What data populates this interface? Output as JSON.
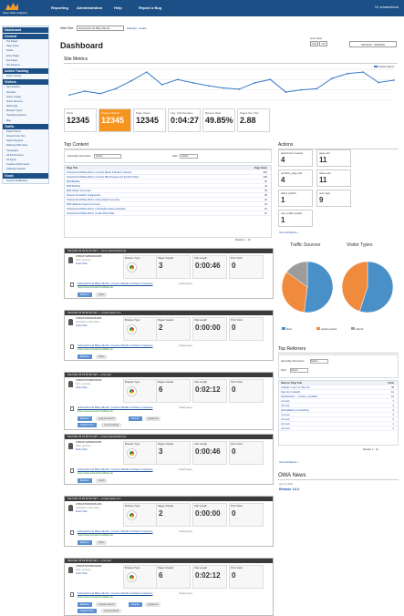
{
  "app": {
    "logo_text": "Open Web Analytics",
    "nav": [
      "Reporting",
      "Administration",
      "Help",
      "Report a Bug"
    ],
    "greeting": "Hi, schwarzhund"
  },
  "sidebar": [
    {
      "group": "Dashboard",
      "items": []
    },
    {
      "group": "Content",
      "items": [
        "Top Pages",
        "Page Types",
        "Feeds",
        "Entry Pages",
        "Exit Pages",
        "Domstreams"
      ]
    },
    {
      "group": "Action Tracking",
      "items": [
        "Action Groups"
      ]
    },
    {
      "group": "Visitors",
      "items": [
        "Geo-location",
        "Domains",
        "Visitor Loyalty",
        "Visitor Recency",
        "Visitor Age",
        "Browser Types",
        "Operating Systems",
        "Map"
      ]
    },
    {
      "group": "Traffic",
      "items": [
        "Search Terms",
        "Inbound Link Text",
        "Search Engines",
        "Referring Web Sites",
        "Campaigns",
        "Ad Performance",
        "Ad Types",
        "Creative Performance",
        "Attribution Models"
      ]
    },
    {
      "group": "Goals",
      "items": [
        "Funnel Visualization"
      ]
    }
  ],
  "site": {
    "label": "Web Site:",
    "value": "Schwarzhund Bikes Berlin",
    "links": "Settings · Goals"
  },
  "dashboard": {
    "title": "Dashboard",
    "live_label": "Live View:",
    "on": "On",
    "off": "Off",
    "date_range": "03/11/20 - 03/25/20"
  },
  "metrics": {
    "title": "Site Metrics",
    "legend": "Unique Visitors",
    "chart_data": {
      "type": "line",
      "series": [
        {
          "name": "Unique Visitors",
          "values": [
            140,
            245,
            180,
            310,
            520,
            760,
            420,
            560,
            470,
            390,
            330,
            300,
            470,
            560,
            220,
            280,
            310,
            590,
            720,
            760,
            480,
            540
          ]
        }
      ],
      "xlabel": "",
      "ylabel": ""
    },
    "kpis": [
      {
        "label": "Visits",
        "value": "12345"
      },
      {
        "label": "Unique Visitors",
        "value": "12345"
      },
      {
        "label": "Page Views",
        "value": "12345"
      },
      {
        "label": "Avg. Visit Duration",
        "value": "0:04:27"
      },
      {
        "label": "Bounce Rate",
        "value": "49.85%"
      },
      {
        "label": "Pages Per Visit",
        "value": "2.88"
      }
    ]
  },
  "top_content": {
    "title": "Top Content",
    "dim_label": "Secondary Dimension:",
    "select": "Select...",
    "filter": "Filter:",
    "cols": [
      "Page Title",
      "Page Views"
    ],
    "rows": [
      [
        "Schwarzhund Bikes Berlin | Custom Builds & Modern Classics",
        "352"
      ],
      [
        "Schwarzhund Bikes Berlin | Custom Bike Projects and Prebuilt Offers",
        "228"
      ],
      [
        "BLB Beltbike",
        "61"
      ],
      [
        "BLB Butterfly",
        "43"
      ],
      [
        "BLB Classic Commuter",
        "36"
      ],
      [
        "Rocport all weather singlespeed",
        "28"
      ],
      [
        "Schwarzhund Bikes Berlin | Surly based commuter",
        "22"
      ],
      [
        "BLB Hildebran based commuter",
        "19"
      ],
      [
        "Schwarzhund Bikes Berlin | Unbeliebte based urbanbike",
        "15"
      ],
      [
        "Schwarzhund Bikes Berlin | Crafts Photo Bike",
        "12"
      ]
    ],
    "pager": "Results: 1 - 10"
  },
  "actions": {
    "title": "Actions",
    "items": [
      {
        "t": "attachment created",
        "v": "4"
      },
      {
        "t": "page edit",
        "v": "11"
      },
      {
        "t": "portfolio_page edit",
        "v": "4"
      },
      {
        "t": "slides edit",
        "v": "11"
      },
      {
        "t": "slides publish",
        "v": "1"
      },
      {
        "t": "user login",
        "v": "9"
      },
      {
        "t": "user profile update",
        "v": "1"
      }
    ],
    "link": "View Full Report »"
  },
  "traffic": {
    "title": "Traffic Sources",
    "visitor_title": "Visitor Types",
    "chart_data": [
      {
        "type": "pie",
        "categories": [
          "direct",
          "organic-search",
          "referral"
        ],
        "values": [
          52,
          33,
          15
        ]
      },
      {
        "type": "pie",
        "categories": [
          "New",
          "Returning"
        ],
        "values": [
          55,
          45
        ]
      }
    ],
    "legend": [
      "direct",
      "organic-search",
      "referral"
    ]
  },
  "referrers": {
    "title": "Top Referrers",
    "dim": "Secondary Dimension:",
    "select": "Select...",
    "filter": "Filter:",
    "cols": [
      "Referrer Page Title",
      "Visits"
    ],
    "rows": [
      [
        "LinkedIn: Log In or Sign Up",
        "30"
      ],
      [
        "Sign Up | LinkedIn",
        "14"
      ],
      [
        "DuckDuckGo — Privacy, simplified",
        "12"
      ],
      [
        "(not set)",
        "7"
      ],
      [
        "(not set)",
        "4"
      ],
      [
        "Fahrradladen in Kreuzberg",
        "3"
      ],
      [
        "(not set)",
        "2"
      ],
      [
        "(not set)",
        "2"
      ],
      [
        "(not set)",
        "1"
      ],
      [
        "(not set)",
        "1"
      ]
    ],
    "pager": "Results: 1 - 10",
    "link": "View Full Report »"
  },
  "news": {
    "title": "OWA News",
    "date": "Apr 13, 2020",
    "headline": "Release 1.6.4"
  },
  "visits": [
    {
      "head": "Wed Mar 25 20:10:11 CET — forum.deutschland.de",
      "vid": "1585187428830030085",
      "loc": "berlin, germany",
      "ip": "Visitor Scan",
      "pages": "3",
      "dur": "0:00:46",
      "prior": "0",
      "title": "Schwarzhund Bikes Berlin | Custom Builds & Modern Classics",
      "url": "https://www.schwarzhundbikes.de",
      "tag1": "Medium:",
      "tag1v": "direct",
      "b": "chrome"
    },
    {
      "head": "Wed Mar 25 20:20:03 CET — amazonaws.com",
      "vid": "1585187838309381066",
      "loc": "manhattan, united states",
      "ip": "Visitor Scan",
      "pages": "2",
      "dur": "0:00:00",
      "prior": "0",
      "title": "Schwarzhund Bikes Berlin | Custom Builds & Modern Classics",
      "url": "https://www.schwarzhundbikes.de",
      "tag1": "Medium:",
      "tag1v": "direct",
      "b": "chrome"
    },
    {
      "head": "Wed Mar 25 19:56:28 CET — (not set)",
      "vid": "1585187597982009295",
      "loc": "berlin, germany",
      "ip": "Visitor Scan",
      "pages": "6",
      "dur": "0:02:12",
      "prior": "0",
      "title": "Schwarzhund Bikes Berlin | Custom Builds & Modern Classics",
      "url": "https://www.schwarzhundbikes.de",
      "tag1": "Medium:",
      "tag1v": "organic-search",
      "src": "Source:",
      "srcv": "google.de",
      "term": "Search Term:",
      "termv": "(not provided)",
      "b": "chrome"
    },
    {
      "head": "Wed Mar 25 21:06:14 CET — forum.deutschland.de",
      "vid": "1585187428830030085",
      "loc": "berlin, germany",
      "ip": "Visitor Scan",
      "pages": "3",
      "dur": "0:00:46",
      "prior": "0",
      "title": "Schwarzhund Bikes Berlin | Custom Builds & Modern Classics",
      "url": "https://www.schwarzhundbikes.de",
      "tag1": "Medium:",
      "tag1v": "direct",
      "b": "chrome"
    },
    {
      "head": "Wed Mar 25 20:20:03 CET — amazonaws.com",
      "vid": "1585187838309381066",
      "loc": "manhattan, united states",
      "ip": "Visitor Scan",
      "pages": "2",
      "dur": "0:00:00",
      "prior": "0",
      "title": "Schwarzhund Bikes Berlin | Custom Builds & Modern Classics",
      "url": "https://www.schwarzhundbikes.de",
      "tag1": "Medium:",
      "tag1v": "direct",
      "b": "chrome"
    },
    {
      "head": "Wed Mar 25 19:56:28 CET — (not set)",
      "vid": "1585187597982009295",
      "loc": "berlin, germany",
      "ip": "Visitor Scan",
      "pages": "6",
      "dur": "0:02:12",
      "prior": "0",
      "title": "Schwarzhund Bikes Berlin | Custom Builds & Modern Classics",
      "url": "https://www.schwarzhundbikes.de",
      "tag1": "Medium:",
      "tag1v": "organic-search",
      "src": "Source:",
      "srcv": "google.de",
      "term": "Search Term:",
      "termv": "(not provided)",
      "b": "chrome"
    }
  ],
  "visit_labels": {
    "browser": "Browser Type",
    "pages": "Pages Viewed",
    "length": "Visit Length",
    "prior": "Prior Visits",
    "startpage": "(Startpage)"
  }
}
